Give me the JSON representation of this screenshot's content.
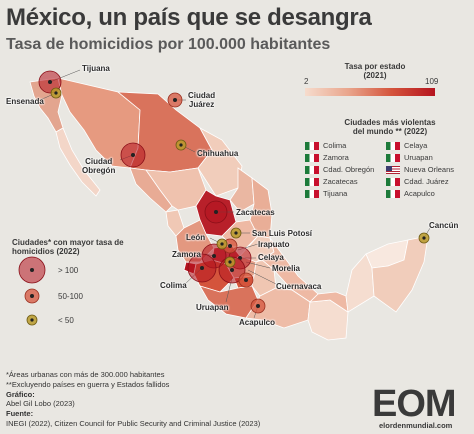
{
  "title": "México, un país que se desangra",
  "subtitle": "Tasa de homicidios por 100.000 habitantes",
  "scale": {
    "title_line1": "Tasa por estado",
    "title_line2": "(2021)",
    "min": "2",
    "max": "109",
    "colors": [
      "#f6dccd",
      "#e9a58c",
      "#d4543c",
      "#b5141f"
    ]
  },
  "violent_list": {
    "title_line1": "Ciudades más violentas",
    "title_line2": "del mundo ** (2022)",
    "col1": [
      {
        "city": "Colima",
        "flag": "mx"
      },
      {
        "city": "Zamora",
        "flag": "mx"
      },
      {
        "city": "Cdad. Obregón",
        "flag": "mx"
      },
      {
        "city": "Zacatecas",
        "flag": "mx"
      },
      {
        "city": "Tijuana",
        "flag": "mx"
      }
    ],
    "col2": [
      {
        "city": "Celaya",
        "flag": "mx"
      },
      {
        "city": "Uruapan",
        "flag": "mx"
      },
      {
        "city": "Nueva Orleans",
        "flag": "us"
      },
      {
        "city": "Cdad. Juárez",
        "flag": "mx"
      },
      {
        "city": "Acapulco",
        "flag": "mx"
      }
    ]
  },
  "city_labels": {
    "tijuana": "Tijuana",
    "ensenada": "Ensenada",
    "juarez_1": "Ciudad",
    "juarez_2": "Juárez",
    "chihuahua": "Chihuahua",
    "obregon_1": "Ciudad",
    "obregon_2": "Obregón",
    "zacatecas": "Zacatecas",
    "slp": "San Luis Potosí",
    "leon": "León",
    "irapuato": "Irapuato",
    "celaya": "Celaya",
    "zamora": "Zamora",
    "morelia": "Morelia",
    "colima": "Colima",
    "cuernavaca": "Cuernavaca",
    "uruapan": "Uruapan",
    "acapulco": "Acapulco",
    "cancun": "Cancún"
  },
  "cities": [
    {
      "name": "Tijuana",
      "category": ">100"
    },
    {
      "name": "Ensenada",
      "category": "<50"
    },
    {
      "name": "Ciudad Juárez",
      "category": "50-100"
    },
    {
      "name": "Chihuahua",
      "category": "<50"
    },
    {
      "name": "Ciudad Obregón",
      "category": ">100"
    },
    {
      "name": "Zacatecas",
      "category": ">100"
    },
    {
      "name": "San Luis Potosí",
      "category": "<50"
    },
    {
      "name": "León",
      "category": "<50"
    },
    {
      "name": "Irapuato",
      "category": "50-100"
    },
    {
      "name": "Celaya",
      "category": ">100"
    },
    {
      "name": "Zamora",
      "category": ">100"
    },
    {
      "name": "Morelia",
      "category": "<50"
    },
    {
      "name": "Colima",
      "category": ">100"
    },
    {
      "name": "Cuernavaca",
      "category": "50-100"
    },
    {
      "name": "Uruapan",
      "category": ">100"
    },
    {
      "name": "Acapulco",
      "category": "50-100"
    },
    {
      "name": "Cancún",
      "category": "<50"
    }
  ],
  "legend": {
    "title_line1": "Ciudades* con mayor tasa de",
    "title_line2": "homicidios (2022)",
    "big": "> 100",
    "mid": "50-100",
    "small": "< 50",
    "colors": {
      "big": "#b5141f",
      "mid": "#d4543c",
      "small": "#b89a2a"
    }
  },
  "footer": {
    "note1": "*Áreas urbanas con más de 300.000 habitantes",
    "note2": "**Excluyendo países en guerra y Estados fallidos",
    "graphic_label": "Gráfico:",
    "graphic": "Abel Gil Lobo (2023)",
    "source_label": "Fuente:",
    "source": "INEGI (2022), Citizen Council for Public Security and Criminal Justice (2023)"
  },
  "logo": {
    "text": "EOM",
    "sub": "elordenmundial.com"
  }
}
